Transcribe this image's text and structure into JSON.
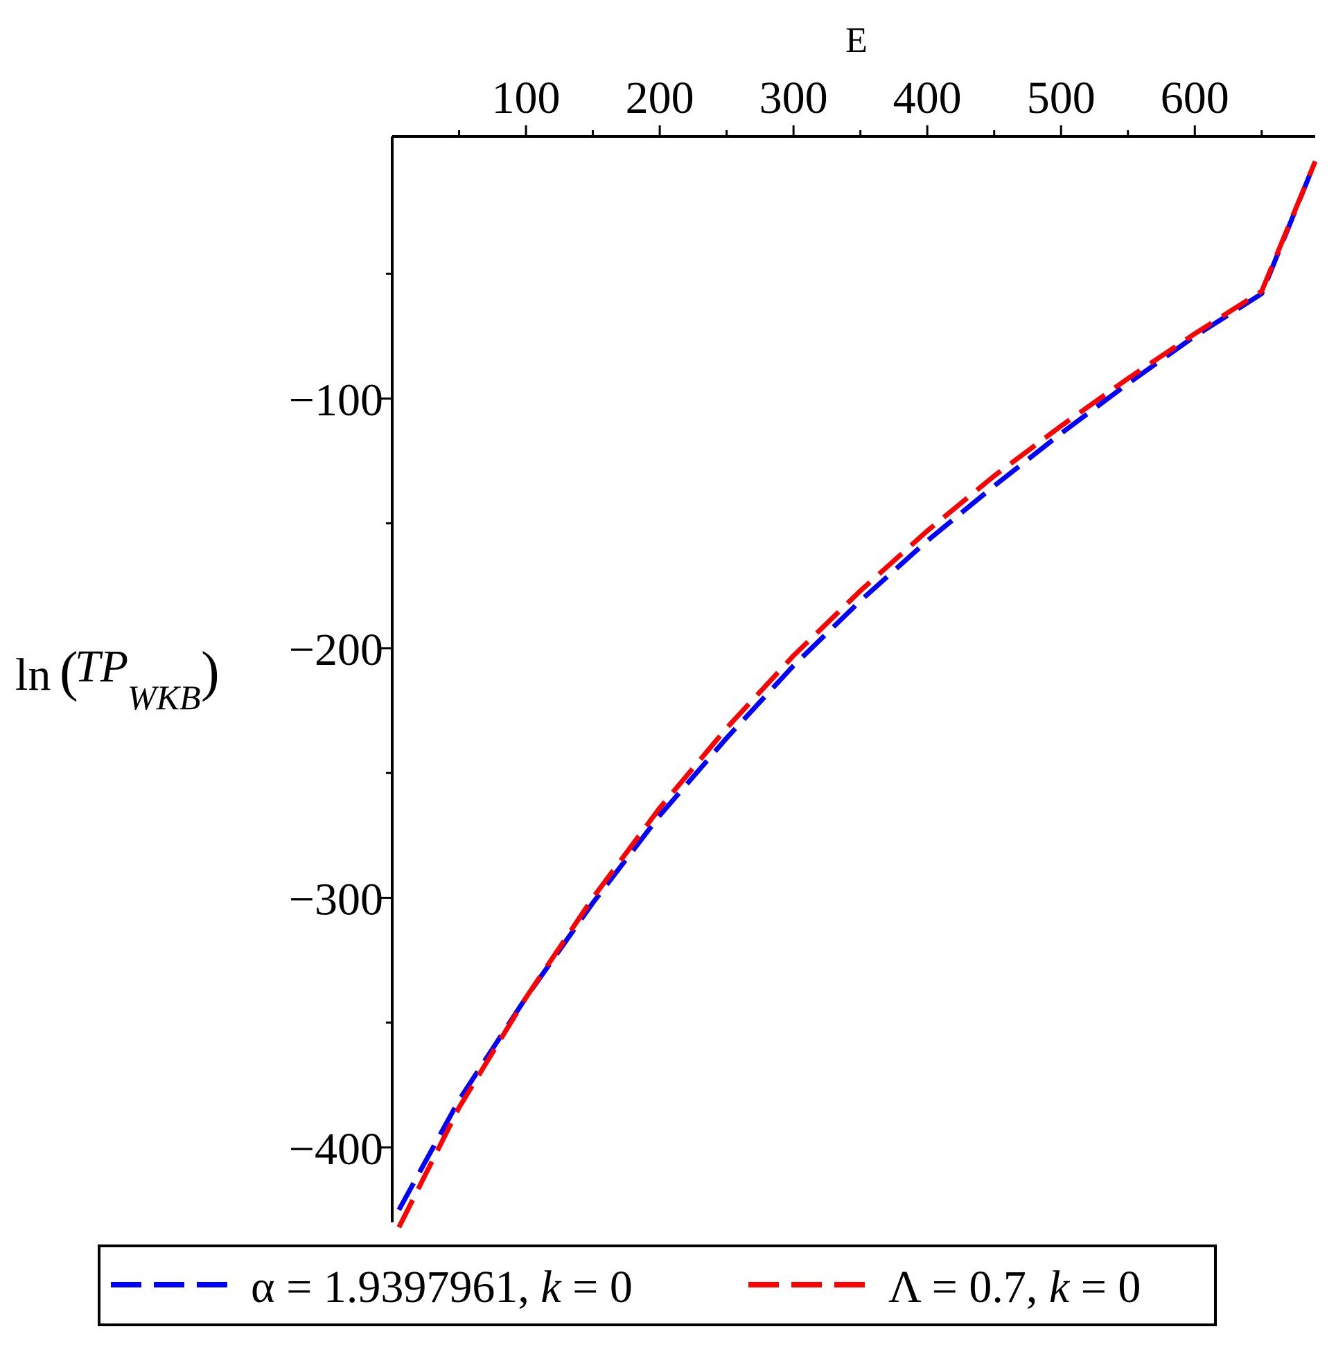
{
  "chart_data": {
    "type": "line",
    "xlabel": "E",
    "ylabel": {
      "prefix": "ln",
      "main": "TP",
      "subscript": "WKB"
    },
    "xlim": [
      0,
      690
    ],
    "ylim": [
      -430,
      5
    ],
    "x_ticks": [
      100,
      200,
      300,
      400,
      500,
      600
    ],
    "x_ticks_labels": [
      "100",
      "200",
      "300",
      "400",
      "500",
      "600"
    ],
    "y_ticks": [
      -100,
      -200,
      -300,
      -400
    ],
    "y_ticks_labels": [
      "−100",
      "−200",
      "−300",
      "−400"
    ],
    "x_axis_position": "top",
    "legend_position": "bottom",
    "grid": false,
    "series": [
      {
        "name": "α = 1.9397961, k = 0",
        "legend": {
          "symbol": "α",
          "equals1": " = 1.9397961, ",
          "var": "k",
          "equals2": " = 0"
        },
        "color": "#0000ff",
        "x": [
          5,
          50,
          100,
          150,
          200,
          250,
          300,
          350,
          400,
          450,
          500,
          550,
          600,
          650,
          690
        ],
        "y": [
          -425,
          -381,
          -340,
          -302,
          -267,
          -236,
          -207,
          -181,
          -157,
          -135,
          -114,
          -94,
          -75,
          -58,
          -5
        ]
      },
      {
        "name": "Λ = 0.7, k = 0",
        "legend": {
          "symbol": "Λ",
          "equals1": " = 0.7, ",
          "var": "k",
          "equals2": " = 0"
        },
        "color": "#ff0000",
        "x": [
          5,
          50,
          100,
          150,
          200,
          250,
          300,
          350,
          400,
          450,
          500,
          550,
          600,
          650,
          690
        ],
        "y": [
          -432,
          -384,
          -340,
          -300,
          -264,
          -232,
          -203,
          -177,
          -153,
          -131,
          -111,
          -92,
          -74,
          -57,
          -5
        ]
      }
    ]
  }
}
